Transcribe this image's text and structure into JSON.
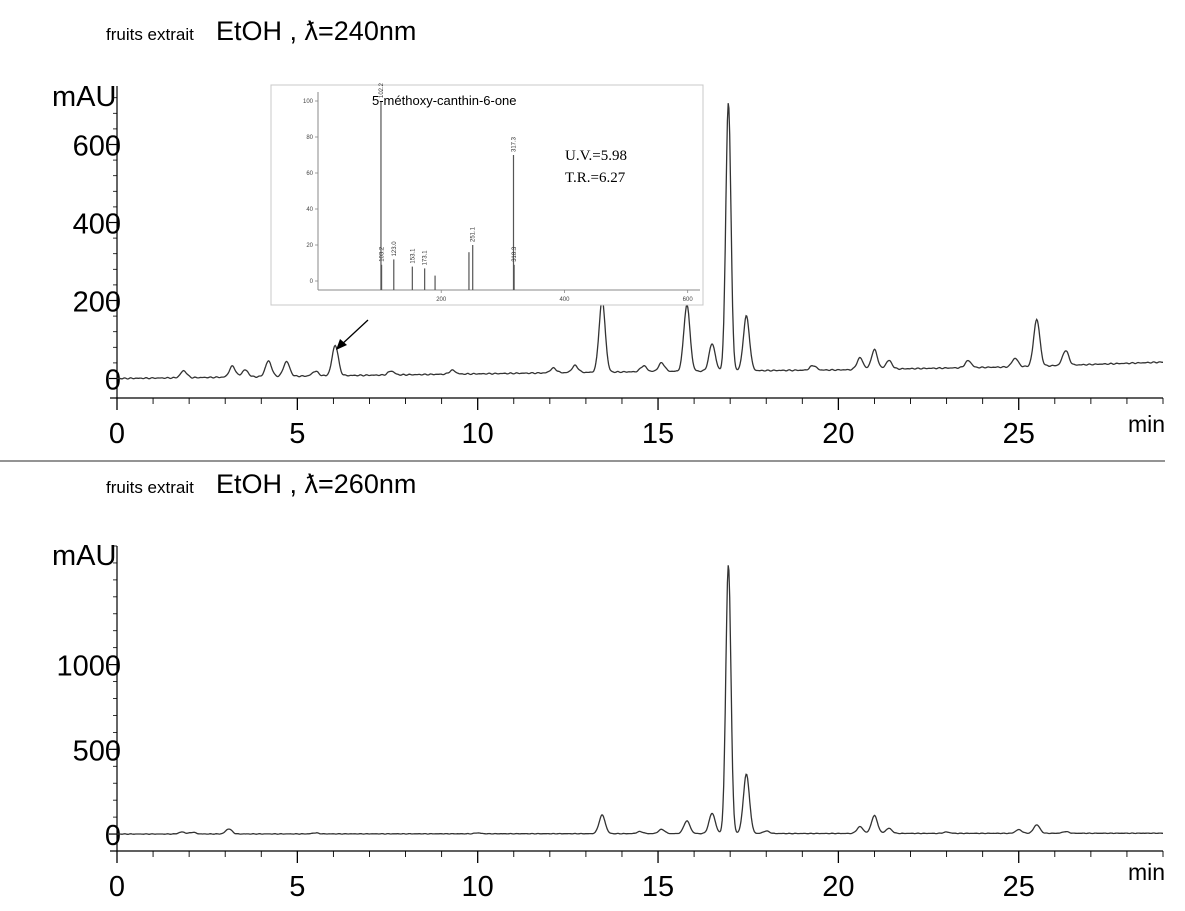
{
  "chart_data": [
    {
      "type": "line",
      "title_prefix": "fruits extrait",
      "title_main": "EtOH , ƛ=240nm",
      "ylabel": "mAU",
      "xlabel": "min",
      "xlim": [
        0,
        29
      ],
      "ylim": [
        -50,
        750
      ],
      "x_ticks": [
        0,
        5,
        10,
        15,
        20,
        25
      ],
      "y_ticks": [
        0,
        200,
        400,
        600
      ],
      "peaks": [
        {
          "rt": 1.85,
          "height": 18
        },
        {
          "rt": 3.2,
          "height": 28
        },
        {
          "rt": 3.55,
          "height": 18
        },
        {
          "rt": 4.2,
          "height": 40
        },
        {
          "rt": 4.7,
          "height": 38
        },
        {
          "rt": 5.5,
          "height": 12
        },
        {
          "rt": 6.05,
          "height": 78
        },
        {
          "rt": 7.6,
          "height": 10
        },
        {
          "rt": 9.3,
          "height": 10
        },
        {
          "rt": 12.1,
          "height": 12
        },
        {
          "rt": 12.7,
          "height": 18
        },
        {
          "rt": 13.45,
          "height": 185
        },
        {
          "rt": 14.6,
          "height": 15
        },
        {
          "rt": 15.1,
          "height": 22
        },
        {
          "rt": 15.8,
          "height": 170
        },
        {
          "rt": 16.5,
          "height": 70
        },
        {
          "rt": 16.95,
          "height": 690
        },
        {
          "rt": 17.45,
          "height": 140
        },
        {
          "rt": 19.3,
          "height": 12
        },
        {
          "rt": 20.6,
          "height": 30
        },
        {
          "rt": 21.0,
          "height": 50
        },
        {
          "rt": 21.4,
          "height": 22
        },
        {
          "rt": 23.6,
          "height": 18
        },
        {
          "rt": 24.9,
          "height": 22
        },
        {
          "rt": 25.5,
          "height": 120
        },
        {
          "rt": 26.3,
          "height": 38
        }
      ],
      "baseline": [
        [
          0,
          0
        ],
        [
          2,
          2
        ],
        [
          5,
          6
        ],
        [
          10,
          12
        ],
        [
          15,
          18
        ],
        [
          20,
          22
        ],
        [
          25,
          30
        ],
        [
          29,
          42
        ]
      ],
      "annotation_arrow_to": {
        "x": 6.05,
        "y": 78
      },
      "inset": {
        "compound": "5-méthoxy-canthin-6-one",
        "note_lines": [
          "U.V.=5.98",
          "T.R.=6.27"
        ],
        "x_ticks": [
          200,
          400,
          600
        ],
        "y_ticks": [
          0,
          20,
          40,
          60,
          80,
          100
        ],
        "xlim": [
          0,
          620
        ],
        "ylim": [
          -5,
          105
        ],
        "peaks": [
          {
            "mz": 102.2,
            "intensity": 100,
            "label": "102.2"
          },
          {
            "mz": 103.2,
            "intensity": 9,
            "label": "103.2"
          },
          {
            "mz": 123.0,
            "intensity": 12,
            "label": "123.0"
          },
          {
            "mz": 153.1,
            "intensity": 8,
            "label": "153.1"
          },
          {
            "mz": 173.1,
            "intensity": 7,
            "label": "173.1"
          },
          {
            "mz": 190.0,
            "intensity": 3,
            "label": ""
          },
          {
            "mz": 245.0,
            "intensity": 16,
            "label": ""
          },
          {
            "mz": 251.1,
            "intensity": 20,
            "label": "251.1"
          },
          {
            "mz": 317.3,
            "intensity": 70,
            "label": "317.3"
          },
          {
            "mz": 318.3,
            "intensity": 9,
            "label": "318.3"
          }
        ]
      }
    },
    {
      "type": "line",
      "title_prefix": "fruits extrait",
      "title_main": "EtOH , ƛ=260nm",
      "ylabel": "mAU",
      "xlabel": "min",
      "xlim": [
        0,
        29
      ],
      "ylim": [
        -100,
        1700
      ],
      "x_ticks": [
        0,
        5,
        10,
        15,
        20,
        25
      ],
      "y_ticks": [
        0,
        500,
        1000
      ],
      "peaks": [
        {
          "rt": 1.8,
          "height": 12
        },
        {
          "rt": 2.1,
          "height": 10
        },
        {
          "rt": 3.1,
          "height": 30
        },
        {
          "rt": 5.5,
          "height": 6
        },
        {
          "rt": 10.0,
          "height": 5
        },
        {
          "rt": 13.45,
          "height": 110
        },
        {
          "rt": 14.5,
          "height": 12
        },
        {
          "rt": 15.1,
          "height": 25
        },
        {
          "rt": 15.8,
          "height": 75
        },
        {
          "rt": 16.5,
          "height": 120
        },
        {
          "rt": 16.95,
          "height": 1590
        },
        {
          "rt": 17.45,
          "height": 350
        },
        {
          "rt": 18.0,
          "height": 15
        },
        {
          "rt": 20.6,
          "height": 40
        },
        {
          "rt": 21.0,
          "height": 105
        },
        {
          "rt": 21.4,
          "height": 30
        },
        {
          "rt": 23.0,
          "height": 8
        },
        {
          "rt": 25.0,
          "height": 22
        },
        {
          "rt": 25.5,
          "height": 50
        },
        {
          "rt": 26.3,
          "height": 10
        }
      ],
      "baseline": [
        [
          0,
          0
        ],
        [
          29,
          5
        ]
      ]
    }
  ]
}
